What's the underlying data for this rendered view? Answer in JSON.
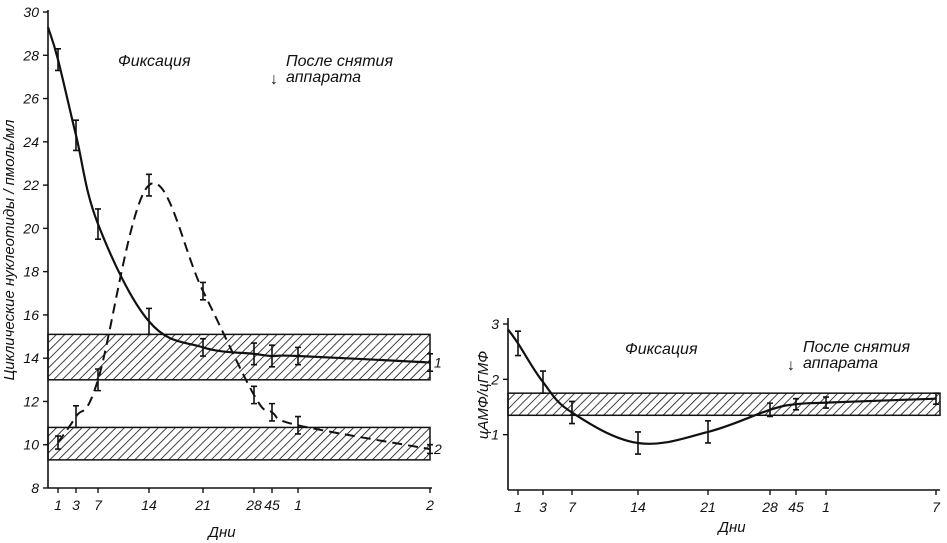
{
  "chart_data": [
    {
      "type": "line",
      "title": "",
      "xlabel": "Дни",
      "ylabel": "Циклические нуклеотиды / пмоль/мл",
      "ylim": [
        8,
        30
      ],
      "yticks": [
        8,
        10,
        12,
        14,
        16,
        18,
        20,
        22,
        24,
        26,
        28,
        30
      ],
      "x_positions": [
        1,
        3,
        7,
        14,
        21,
        28,
        45,
        1,
        2
      ],
      "x_labels": [
        "1",
        "3",
        "7",
        "14",
        "21",
        "28",
        "45",
        "1",
        "2"
      ],
      "x_label_28_45": "2845",
      "annotations": {
        "phase": "Фиксация",
        "after_line1": "После снятия",
        "after_line2": "аппарата",
        "arrow": "↓"
      },
      "normal_ranges": [
        [
          13,
          15.1
        ],
        [
          9.3,
          10.8
        ]
      ],
      "series": [
        {
          "name": "1",
          "style": "solid",
          "points": [
            {
              "x": 1,
              "y": 27.8,
              "err": 0.5
            },
            {
              "x": 3,
              "y": 24.3,
              "err": 0.7
            },
            {
              "x": 7,
              "y": 20.2,
              "err": 0.7
            },
            {
              "x": 14,
              "y": 15.7,
              "err": 0.6
            },
            {
              "x": 21,
              "y": 14.5,
              "err": 0.4
            },
            {
              "x": 28,
              "y": 14.2,
              "err": 0.5
            },
            {
              "x": 45,
              "y": 14.1,
              "err": 0.5
            },
            {
              "x": 1,
              "y": 14.1,
              "err": 0.4
            },
            {
              "x": 2,
              "y": 13.8,
              "err": 0.4
            }
          ]
        },
        {
          "name": "2",
          "style": "dashed",
          "points": [
            {
              "x": 1,
              "y": 10.1,
              "err": 0.3
            },
            {
              "x": 3,
              "y": 11.3,
              "err": 0.5
            },
            {
              "x": 7,
              "y": 13.0,
              "err": 0.5
            },
            {
              "x": 14,
              "y": 22.0,
              "err": 0.5
            },
            {
              "x": 21,
              "y": 17.1,
              "err": 0.4
            },
            {
              "x": 28,
              "y": 12.3,
              "err": 0.4
            },
            {
              "x": 45,
              "y": 11.5,
              "err": 0.4
            },
            {
              "x": 1,
              "y": 10.9,
              "err": 0.4
            },
            {
              "x": 2,
              "y": 9.8,
              "err": 0.2
            }
          ]
        }
      ]
    },
    {
      "type": "line",
      "title": "",
      "xlabel": "Дни",
      "ylabel": "цАМФ/цГМФ",
      "ylim": [
        0,
        3
      ],
      "yticks": [
        1,
        2,
        3
      ],
      "x_positions": [
        1,
        3,
        7,
        14,
        21,
        28,
        45,
        1,
        7
      ],
      "x_labels": [
        "1",
        "3",
        "7",
        "14",
        "21",
        "28",
        "45",
        "1",
        "7"
      ],
      "annotations": {
        "phase": "Фиксация",
        "after_line1": "После снятия",
        "after_line2": "аппарата",
        "arrow": "↓"
      },
      "normal_ranges": [
        [
          1.35,
          1.75
        ]
      ],
      "series": [
        {
          "name": "цАМФ/цГМФ",
          "style": "solid",
          "points": [
            {
              "x": 1,
              "y": 2.65,
              "err": 0.22
            },
            {
              "x": 3,
              "y": 1.95,
              "err": 0.2
            },
            {
              "x": 7,
              "y": 1.4,
              "err": 0.2
            },
            {
              "x": 14,
              "y": 0.85,
              "err": 0.2
            },
            {
              "x": 21,
              "y": 1.05,
              "err": 0.2
            },
            {
              "x": 28,
              "y": 1.45,
              "err": 0.12
            },
            {
              "x": 45,
              "y": 1.55,
              "err": 0.1
            },
            {
              "x": 1,
              "y": 1.58,
              "err": 0.1
            },
            {
              "x": 7,
              "y": 1.65,
              "err": 0.1
            }
          ]
        }
      ]
    }
  ]
}
